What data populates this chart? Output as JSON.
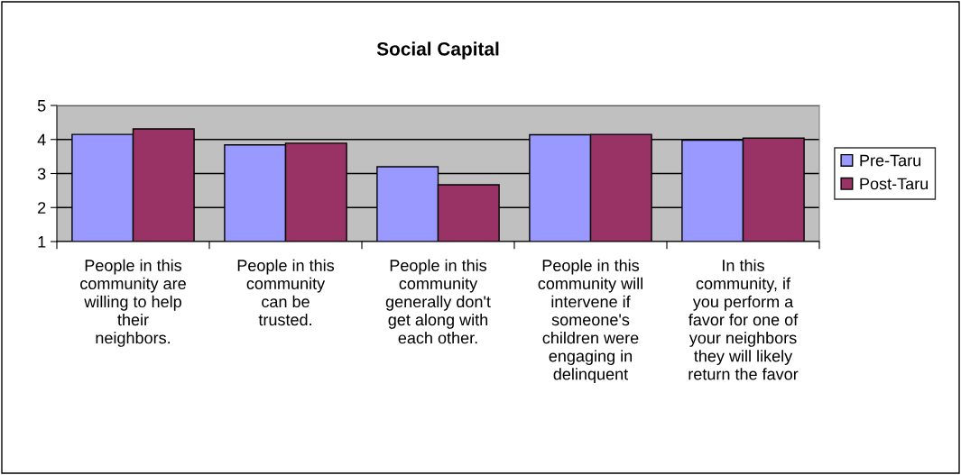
{
  "chart_data": {
    "type": "bar",
    "title": "Social Capital",
    "categories": [
      "People in this\ncommunity are\nwilling to help\ntheir\nneighbors.",
      "People in this\ncommunity\ncan be\ntrusted.",
      "People in this\ncommunity\ngenerally don't\nget along with\neach other.",
      "People in this\ncommunity will\nintervene if\nsomeone's\nchildren were\nengaging in\ndelinquent",
      "In this\ncommunity, if\nyou perform a\nfavor for one of\nyour neighbors\nthey will likely\nreturn the favor"
    ],
    "series": [
      {
        "name": "Pre-Taru",
        "color": "#9999ff",
        "values": [
          4.15,
          3.84,
          3.2,
          4.14,
          3.98
        ]
      },
      {
        "name": "Post-Taru",
        "color": "#993366",
        "values": [
          4.31,
          3.89,
          2.67,
          4.15,
          4.04
        ]
      }
    ],
    "ylim": [
      1,
      5
    ],
    "yticks": [
      1,
      2,
      3,
      4,
      5
    ],
    "grid": "y",
    "legend": "right"
  }
}
